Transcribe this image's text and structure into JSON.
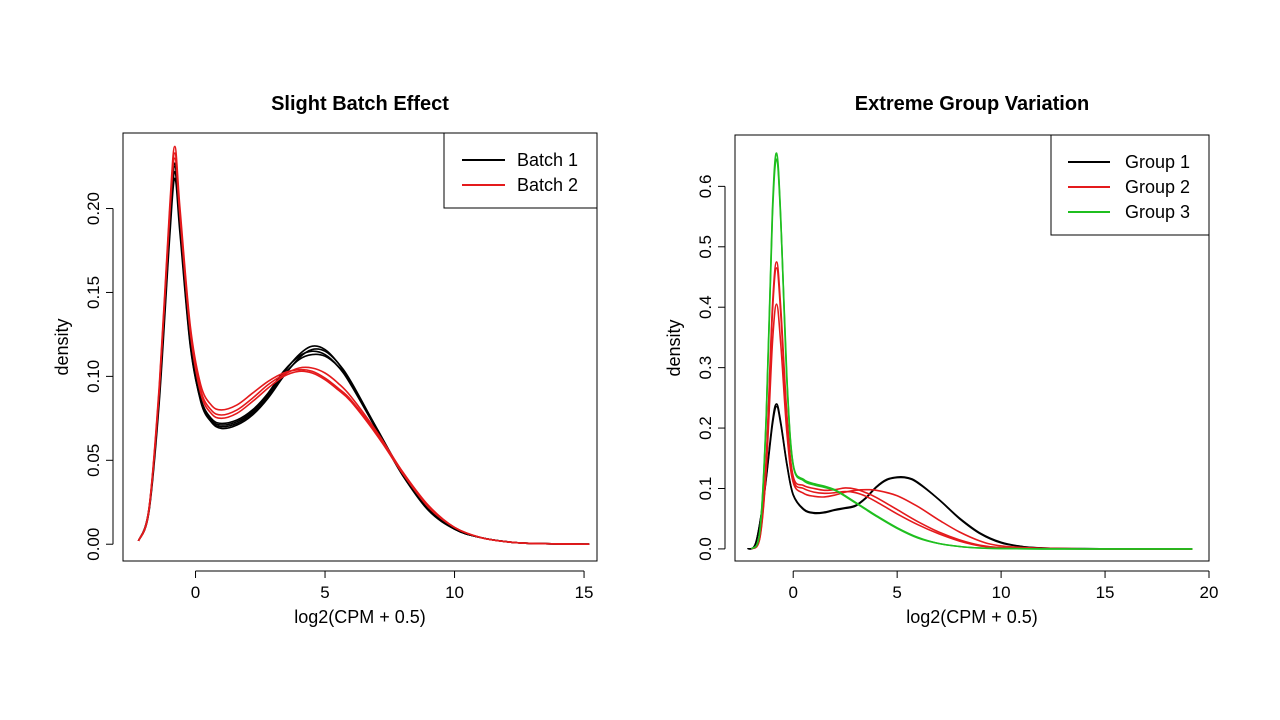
{
  "chart_data": [
    {
      "type": "line",
      "title": "Slight Batch Effect",
      "xlabel": "log2(CPM + 0.5)",
      "ylabel": "density",
      "xlim": [
        -2.8,
        15.5
      ],
      "ylim": [
        -0.01,
        0.245
      ],
      "xticks": [
        0,
        5,
        10,
        15
      ],
      "yticks": [
        0.0,
        0.05,
        0.1,
        0.15,
        0.2
      ],
      "xtick_labels": [
        "0",
        "5",
        "10",
        "15"
      ],
      "ytick_labels": [
        "0.00",
        "0.05",
        "0.10",
        "0.15",
        "0.20"
      ],
      "legend_position": "top-right",
      "legend": [
        {
          "label": "Batch 1",
          "color": "#000000"
        },
        {
          "label": "Batch 2",
          "color": "#e41a1c"
        }
      ],
      "series": [
        {
          "color": "#000000",
          "x": [
            -2.2,
            -1.8,
            -1.4,
            -1.0,
            -0.8,
            -0.6,
            -0.2,
            0.2,
            0.6,
            1.0,
            1.6,
            2.2,
            2.8,
            3.4,
            4.0,
            4.5,
            5.0,
            5.5,
            6.0,
            7.0,
            8.0,
            9.0,
            10.0,
            11.0,
            12.0,
            13.0,
            15.2
          ],
          "y": [
            0.002,
            0.02,
            0.09,
            0.19,
            0.225,
            0.19,
            0.12,
            0.085,
            0.073,
            0.07,
            0.072,
            0.078,
            0.088,
            0.102,
            0.113,
            0.118,
            0.116,
            0.108,
            0.096,
            0.068,
            0.041,
            0.02,
            0.009,
            0.004,
            0.0015,
            0.0005,
            0.0
          ]
        },
        {
          "color": "#000000",
          "x": [
            -2.2,
            -1.8,
            -1.4,
            -1.0,
            -0.8,
            -0.6,
            -0.2,
            0.2,
            0.6,
            1.0,
            1.6,
            2.2,
            2.8,
            3.4,
            4.0,
            4.5,
            5.0,
            5.5,
            6.0,
            7.0,
            8.0,
            9.0,
            10.0,
            11.0,
            12.0,
            13.0,
            15.2
          ],
          "y": [
            0.002,
            0.02,
            0.088,
            0.186,
            0.222,
            0.188,
            0.119,
            0.087,
            0.075,
            0.072,
            0.074,
            0.08,
            0.09,
            0.103,
            0.112,
            0.115,
            0.113,
            0.106,
            0.095,
            0.068,
            0.041,
            0.021,
            0.009,
            0.004,
            0.0015,
            0.0005,
            0.0
          ]
        },
        {
          "color": "#000000",
          "x": [
            -2.2,
            -1.8,
            -1.4,
            -1.0,
            -0.8,
            -0.6,
            -0.2,
            0.2,
            0.6,
            1.0,
            1.6,
            2.2,
            2.8,
            3.4,
            4.0,
            4.5,
            5.0,
            5.5,
            6.0,
            7.0,
            8.0,
            9.0,
            10.0,
            11.0,
            12.0,
            13.0,
            15.2
          ],
          "y": [
            0.002,
            0.019,
            0.085,
            0.182,
            0.218,
            0.185,
            0.118,
            0.086,
            0.074,
            0.071,
            0.073,
            0.079,
            0.089,
            0.101,
            0.11,
            0.113,
            0.112,
            0.106,
            0.096,
            0.069,
            0.042,
            0.021,
            0.009,
            0.004,
            0.0015,
            0.0005,
            0.0
          ]
        },
        {
          "color": "#000000",
          "x": [
            -2.2,
            -1.8,
            -1.4,
            -1.0,
            -0.8,
            -0.6,
            -0.2,
            0.2,
            0.6,
            1.0,
            1.6,
            2.2,
            2.8,
            3.4,
            4.0,
            4.5,
            5.0,
            5.5,
            6.0,
            7.0,
            8.0,
            9.0,
            10.0,
            11.0,
            12.0,
            13.0,
            15.2
          ],
          "y": [
            0.002,
            0.021,
            0.091,
            0.191,
            0.227,
            0.192,
            0.121,
            0.086,
            0.073,
            0.069,
            0.071,
            0.077,
            0.087,
            0.1,
            0.111,
            0.116,
            0.115,
            0.108,
            0.097,
            0.069,
            0.042,
            0.021,
            0.009,
            0.004,
            0.0015,
            0.0005,
            0.0
          ]
        },
        {
          "color": "#e41a1c",
          "x": [
            -2.2,
            -1.8,
            -1.4,
            -1.0,
            -0.8,
            -0.6,
            -0.2,
            0.2,
            0.6,
            1.0,
            1.6,
            2.2,
            2.8,
            3.4,
            4.0,
            4.5,
            5.0,
            5.5,
            6.0,
            7.0,
            8.0,
            9.0,
            10.0,
            11.0,
            12.0,
            13.0,
            15.2
          ],
          "y": [
            0.002,
            0.021,
            0.095,
            0.2,
            0.237,
            0.2,
            0.13,
            0.095,
            0.083,
            0.08,
            0.083,
            0.09,
            0.097,
            0.102,
            0.104,
            0.103,
            0.099,
            0.093,
            0.086,
            0.066,
            0.043,
            0.023,
            0.01,
            0.004,
            0.0015,
            0.0005,
            0.0
          ]
        },
        {
          "color": "#e41a1c",
          "x": [
            -2.2,
            -1.8,
            -1.4,
            -1.0,
            -0.8,
            -0.6,
            -0.2,
            0.2,
            0.6,
            1.0,
            1.6,
            2.2,
            2.8,
            3.4,
            4.0,
            4.5,
            5.0,
            5.5,
            6.0,
            7.0,
            8.0,
            9.0,
            10.0,
            11.0,
            12.0,
            13.0,
            15.2
          ],
          "y": [
            0.002,
            0.02,
            0.093,
            0.197,
            0.233,
            0.197,
            0.128,
            0.092,
            0.08,
            0.077,
            0.08,
            0.087,
            0.095,
            0.101,
            0.105,
            0.105,
            0.102,
            0.096,
            0.088,
            0.067,
            0.043,
            0.022,
            0.01,
            0.004,
            0.0015,
            0.0005,
            0.0
          ]
        },
        {
          "color": "#e41a1c",
          "x": [
            -2.2,
            -1.8,
            -1.4,
            -1.0,
            -0.8,
            -0.6,
            -0.2,
            0.2,
            0.6,
            1.0,
            1.6,
            2.2,
            2.8,
            3.4,
            4.0,
            4.5,
            5.0,
            5.5,
            6.0,
            7.0,
            8.0,
            9.0,
            10.0,
            11.0,
            12.0,
            13.0,
            15.2
          ],
          "y": [
            0.002,
            0.02,
            0.092,
            0.195,
            0.23,
            0.195,
            0.126,
            0.09,
            0.078,
            0.075,
            0.078,
            0.085,
            0.093,
            0.1,
            0.103,
            0.102,
            0.098,
            0.092,
            0.085,
            0.065,
            0.042,
            0.022,
            0.01,
            0.004,
            0.0015,
            0.0005,
            0.0
          ]
        }
      ]
    },
    {
      "type": "line",
      "title": "Extreme Group Variation",
      "xlabel": "log2(CPM + 0.5)",
      "ylabel": "density",
      "xlim": [
        -2.8,
        20.0
      ],
      "ylim": [
        -0.02,
        0.685
      ],
      "xticks": [
        0,
        5,
        10,
        15,
        20
      ],
      "yticks": [
        0.0,
        0.1,
        0.2,
        0.3,
        0.4,
        0.5,
        0.6
      ],
      "xtick_labels": [
        "0",
        "5",
        "10",
        "15",
        "20"
      ],
      "ytick_labels": [
        "0.0",
        "0.1",
        "0.2",
        "0.3",
        "0.4",
        "0.5",
        "0.6"
      ],
      "legend_position": "top-right",
      "legend": [
        {
          "label": "Group 1",
          "color": "#000000"
        },
        {
          "label": "Group 2",
          "color": "#e41a1c"
        },
        {
          "label": "Group 3",
          "color": "#1fbf1f"
        }
      ],
      "series": [
        {
          "color": "#000000",
          "x": [
            -2.2,
            -1.8,
            -1.4,
            -1.0,
            -0.8,
            -0.6,
            -0.3,
            0.0,
            0.5,
            1.0,
            1.5,
            2.0,
            2.5,
            3.0,
            3.5,
            4.0,
            4.5,
            5.0,
            5.5,
            6.0,
            7.0,
            8.0,
            9.0,
            10.0,
            11.0,
            12.0,
            14.0,
            17.0,
            19.2
          ],
          "y": [
            0.0,
            0.01,
            0.09,
            0.21,
            0.24,
            0.21,
            0.14,
            0.09,
            0.066,
            0.06,
            0.061,
            0.065,
            0.068,
            0.072,
            0.085,
            0.103,
            0.115,
            0.119,
            0.118,
            0.11,
            0.082,
            0.05,
            0.025,
            0.01,
            0.004,
            0.0015,
            0.0003,
            0.0,
            0.0
          ]
        },
        {
          "color": "#000000",
          "x": [
            -2.2,
            -1.8,
            -1.4,
            -1.0,
            -0.8,
            -0.6,
            -0.3,
            0.0,
            0.5,
            1.0,
            1.5,
            2.0,
            2.5,
            3.0,
            3.5,
            4.0,
            4.5,
            5.0,
            5.5,
            6.0,
            7.0,
            8.0,
            9.0,
            10.0,
            11.0,
            12.0,
            14.0,
            17.0,
            19.2
          ],
          "y": [
            0.0,
            0.01,
            0.088,
            0.205,
            0.236,
            0.207,
            0.138,
            0.089,
            0.065,
            0.059,
            0.06,
            0.064,
            0.067,
            0.071,
            0.084,
            0.102,
            0.114,
            0.118,
            0.117,
            0.109,
            0.082,
            0.051,
            0.026,
            0.011,
            0.004,
            0.0015,
            0.0003,
            0.0,
            0.0
          ]
        },
        {
          "color": "#e41a1c",
          "x": [
            -2.0,
            -1.6,
            -1.3,
            -1.0,
            -0.8,
            -0.6,
            -0.3,
            0.0,
            0.5,
            1.0,
            1.5,
            2.0,
            2.5,
            3.0,
            3.5,
            4.0,
            5.0,
            6.0,
            7.0,
            8.0,
            9.0,
            10.0,
            12.0,
            15.0,
            19.2
          ],
          "y": [
            0.0,
            0.02,
            0.15,
            0.4,
            0.475,
            0.4,
            0.22,
            0.12,
            0.105,
            0.1,
            0.097,
            0.098,
            0.101,
            0.099,
            0.093,
            0.085,
            0.065,
            0.045,
            0.028,
            0.015,
            0.006,
            0.002,
            0.0005,
            0.0,
            0.0
          ]
        },
        {
          "color": "#e41a1c",
          "x": [
            -2.0,
            -1.6,
            -1.3,
            -1.0,
            -0.8,
            -0.6,
            -0.3,
            0.0,
            0.5,
            1.0,
            1.5,
            2.0,
            2.5,
            3.0,
            3.5,
            4.0,
            5.0,
            6.0,
            7.0,
            8.0,
            9.0,
            10.0,
            12.0,
            15.0,
            19.2
          ],
          "y": [
            0.0,
            0.018,
            0.13,
            0.34,
            0.405,
            0.34,
            0.19,
            0.11,
            0.092,
            0.087,
            0.086,
            0.089,
            0.094,
            0.097,
            0.098,
            0.097,
            0.088,
            0.07,
            0.048,
            0.028,
            0.013,
            0.005,
            0.001,
            0.0,
            0.0
          ]
        },
        {
          "color": "#e41a1c",
          "x": [
            -2.0,
            -1.6,
            -1.3,
            -1.0,
            -0.8,
            -0.6,
            -0.3,
            0.0,
            0.5,
            1.0,
            1.5,
            2.0,
            2.5,
            3.0,
            3.5,
            4.0,
            5.0,
            6.0,
            7.0,
            8.0,
            9.0,
            10.0,
            12.0,
            15.0,
            19.2
          ],
          "y": [
            0.0,
            0.02,
            0.14,
            0.39,
            0.465,
            0.39,
            0.21,
            0.115,
            0.1,
            0.094,
            0.092,
            0.093,
            0.095,
            0.093,
            0.087,
            0.078,
            0.058,
            0.04,
            0.025,
            0.013,
            0.005,
            0.002,
            0.0005,
            0.0,
            0.0
          ]
        },
        {
          "color": "#1fbf1f",
          "x": [
            -2.0,
            -1.6,
            -1.3,
            -1.0,
            -0.8,
            -0.6,
            -0.3,
            0.0,
            0.5,
            1.0,
            1.5,
            2.0,
            2.5,
            3.0,
            3.5,
            4.0,
            5.0,
            6.0,
            7.0,
            8.0,
            9.0,
            10.0,
            12.0,
            15.0,
            19.2
          ],
          "y": [
            0.0,
            0.03,
            0.22,
            0.56,
            0.655,
            0.55,
            0.28,
            0.14,
            0.115,
            0.108,
            0.104,
            0.098,
            0.088,
            0.077,
            0.066,
            0.055,
            0.035,
            0.019,
            0.009,
            0.004,
            0.0015,
            0.0005,
            0.0,
            0.0,
            0.0
          ]
        },
        {
          "color": "#1fbf1f",
          "x": [
            -2.0,
            -1.6,
            -1.3,
            -1.0,
            -0.8,
            -0.6,
            -0.3,
            0.0,
            0.5,
            1.0,
            1.5,
            2.0,
            2.5,
            3.0,
            3.5,
            4.0,
            5.0,
            6.0,
            7.0,
            8.0,
            9.0,
            10.0,
            12.0,
            15.0,
            19.2
          ],
          "y": [
            0.0,
            0.03,
            0.215,
            0.55,
            0.645,
            0.545,
            0.275,
            0.138,
            0.113,
            0.106,
            0.102,
            0.097,
            0.087,
            0.076,
            0.065,
            0.054,
            0.034,
            0.018,
            0.009,
            0.004,
            0.0015,
            0.0005,
            0.0,
            0.0,
            0.0
          ]
        }
      ]
    }
  ]
}
